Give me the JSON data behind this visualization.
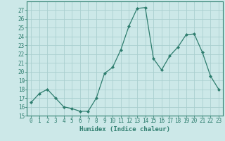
{
  "x": [
    0,
    1,
    2,
    3,
    4,
    5,
    6,
    7,
    8,
    9,
    10,
    11,
    12,
    13,
    14,
    15,
    16,
    17,
    18,
    19,
    20,
    21,
    22,
    23
  ],
  "y": [
    16.5,
    17.5,
    18.0,
    17.0,
    16.0,
    15.8,
    15.5,
    15.5,
    17.0,
    19.8,
    20.5,
    22.5,
    25.2,
    27.2,
    27.3,
    21.5,
    20.2,
    21.8,
    22.8,
    24.2,
    24.3,
    22.2,
    19.5,
    18.0
  ],
  "xlabel": "Humidex (Indice chaleur)",
  "ylim": [
    15,
    28
  ],
  "xlim": [
    -0.5,
    23.5
  ],
  "yticks": [
    15,
    16,
    17,
    18,
    19,
    20,
    21,
    22,
    23,
    24,
    25,
    26,
    27
  ],
  "xticks": [
    0,
    1,
    2,
    3,
    4,
    5,
    6,
    7,
    8,
    9,
    10,
    11,
    12,
    13,
    14,
    15,
    16,
    17,
    18,
    19,
    20,
    21,
    22,
    23
  ],
  "line_color": "#2e7d6e",
  "bg_color": "#cce8e8",
  "grid_color": "#aacfcf",
  "label_fontsize": 6.5,
  "tick_fontsize": 5.5
}
